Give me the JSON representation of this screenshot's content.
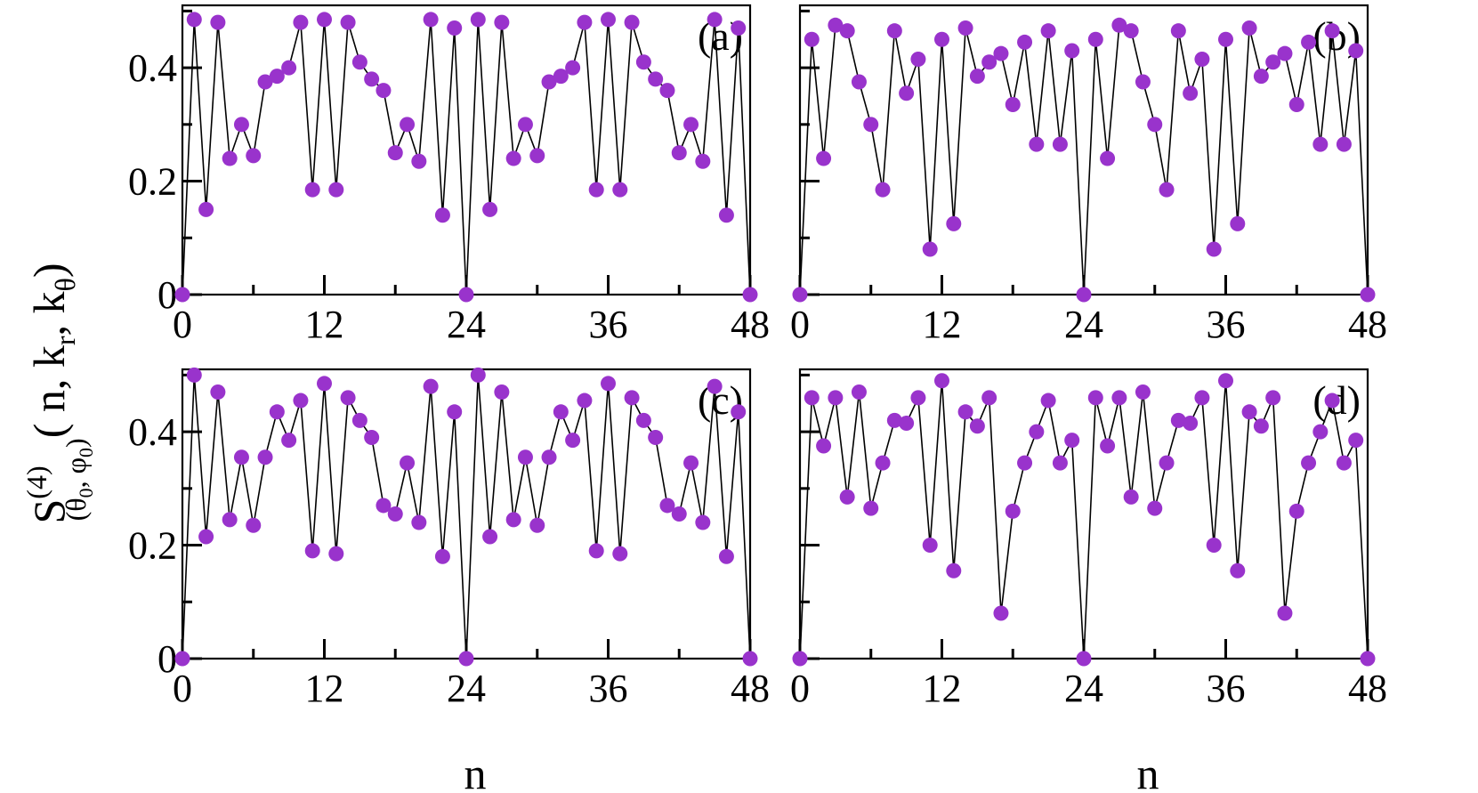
{
  "chart_data": [
    {
      "panel": "(a)",
      "type": "line",
      "xlim": [
        0,
        48
      ],
      "ylim": [
        0,
        0.51
      ],
      "xticks": [
        "0",
        "12",
        "24",
        "36",
        "48"
      ],
      "yticks": [
        "0",
        "0.2",
        "0.4"
      ],
      "x": [
        0,
        1,
        2,
        3,
        4,
        5,
        6,
        7,
        8,
        9,
        10,
        11,
        12,
        13,
        14,
        15,
        16,
        17,
        18,
        19,
        20,
        21,
        22,
        23,
        24,
        25,
        26,
        27,
        28,
        29,
        30,
        31,
        32,
        33,
        34,
        35,
        36,
        37,
        38,
        39,
        40,
        41,
        42,
        43,
        44,
        45,
        46,
        47,
        48
      ],
      "series": [
        {
          "values": [
            0,
            0.485,
            0.15,
            0.48,
            0.24,
            0.3,
            0.245,
            0.375,
            0.385,
            0.4,
            0.48,
            0.185,
            0.485,
            0.185,
            0.48,
            0.41,
            0.38,
            0.36,
            0.25,
            0.3,
            0.235,
            0.485,
            0.14,
            0.47,
            0,
            0.485,
            0.15,
            0.48,
            0.24,
            0.3,
            0.245,
            0.375,
            0.385,
            0.4,
            0.48,
            0.185,
            0.485,
            0.185,
            0.48,
            0.41,
            0.38,
            0.36,
            0.25,
            0.3,
            0.235,
            0.485,
            0.14,
            0.47,
            0
          ]
        }
      ]
    },
    {
      "panel": "(b)",
      "type": "line",
      "xlim": [
        0,
        48
      ],
      "ylim": [
        0,
        0.51
      ],
      "xticks": [
        "0",
        "12",
        "24",
        "36",
        "48"
      ],
      "yticks": [],
      "x": [
        0,
        1,
        2,
        3,
        4,
        5,
        6,
        7,
        8,
        9,
        10,
        11,
        12,
        13,
        14,
        15,
        16,
        17,
        18,
        19,
        20,
        21,
        22,
        23,
        24,
        25,
        26,
        27,
        28,
        29,
        30,
        31,
        32,
        33,
        34,
        35,
        36,
        37,
        38,
        39,
        40,
        41,
        42,
        43,
        44,
        45,
        46,
        47,
        48
      ],
      "series": [
        {
          "values": [
            0,
            0.45,
            0.24,
            0.475,
            0.465,
            0.375,
            0.3,
            0.185,
            0.465,
            0.355,
            0.415,
            0.08,
            0.45,
            0.125,
            0.47,
            0.385,
            0.41,
            0.425,
            0.335,
            0.445,
            0.265,
            0.465,
            0.265,
            0.43,
            0,
            0.45,
            0.24,
            0.475,
            0.465,
            0.375,
            0.3,
            0.185,
            0.465,
            0.355,
            0.415,
            0.08,
            0.45,
            0.125,
            0.47,
            0.385,
            0.41,
            0.425,
            0.335,
            0.445,
            0.265,
            0.465,
            0.265,
            0.43,
            0
          ]
        }
      ]
    },
    {
      "panel": "(c)",
      "type": "line",
      "xlim": [
        0,
        48
      ],
      "ylim": [
        0,
        0.51
      ],
      "xticks": [
        "0",
        "12",
        "24",
        "36",
        "48"
      ],
      "yticks": [
        "0",
        "0.2",
        "0.4"
      ],
      "x": [
        0,
        1,
        2,
        3,
        4,
        5,
        6,
        7,
        8,
        9,
        10,
        11,
        12,
        13,
        14,
        15,
        16,
        17,
        18,
        19,
        20,
        21,
        22,
        23,
        24,
        25,
        26,
        27,
        28,
        29,
        30,
        31,
        32,
        33,
        34,
        35,
        36,
        37,
        38,
        39,
        40,
        41,
        42,
        43,
        44,
        45,
        46,
        47,
        48
      ],
      "series": [
        {
          "values": [
            0,
            0.5,
            0.215,
            0.47,
            0.245,
            0.355,
            0.235,
            0.355,
            0.435,
            0.385,
            0.455,
            0.19,
            0.485,
            0.185,
            0.46,
            0.42,
            0.39,
            0.27,
            0.255,
            0.345,
            0.24,
            0.48,
            0.18,
            0.435,
            0,
            0.5,
            0.215,
            0.47,
            0.245,
            0.355,
            0.235,
            0.355,
            0.435,
            0.385,
            0.455,
            0.19,
            0.485,
            0.185,
            0.46,
            0.42,
            0.39,
            0.27,
            0.255,
            0.345,
            0.24,
            0.48,
            0.18,
            0.435,
            0
          ]
        }
      ]
    },
    {
      "panel": "(d)",
      "type": "line",
      "xlim": [
        0,
        48
      ],
      "ylim": [
        0,
        0.51
      ],
      "xticks": [
        "0",
        "12",
        "24",
        "36",
        "48"
      ],
      "yticks": [],
      "x": [
        0,
        1,
        2,
        3,
        4,
        5,
        6,
        7,
        8,
        9,
        10,
        11,
        12,
        13,
        14,
        15,
        16,
        17,
        18,
        19,
        20,
        21,
        22,
        23,
        24,
        25,
        26,
        27,
        28,
        29,
        30,
        31,
        32,
        33,
        34,
        35,
        36,
        37,
        38,
        39,
        40,
        41,
        42,
        43,
        44,
        45,
        46,
        47,
        48
      ],
      "series": [
        {
          "values": [
            0,
            0.46,
            0.375,
            0.46,
            0.285,
            0.47,
            0.265,
            0.345,
            0.42,
            0.415,
            0.46,
            0.2,
            0.49,
            0.155,
            0.435,
            0.41,
            0.46,
            0.08,
            0.26,
            0.345,
            0.4,
            0.455,
            0.345,
            0.385,
            0,
            0.46,
            0.375,
            0.46,
            0.285,
            0.47,
            0.265,
            0.345,
            0.42,
            0.415,
            0.46,
            0.2,
            0.49,
            0.155,
            0.435,
            0.41,
            0.46,
            0.08,
            0.26,
            0.345,
            0.4,
            0.455,
            0.345,
            0.385,
            0
          ]
        }
      ]
    }
  ],
  "axis_labels": {
    "x": "n",
    "y_main": "S",
    "y_sup": "(4)",
    "y_sub_open": "(θ",
    "y_sub_0a": "0",
    "y_sub_mid": ", φ",
    "y_sub_0b": "0",
    "y_sub_close": ")",
    "y_args_open": "( n, k",
    "y_args_r": "r",
    "y_args_mid": ", k",
    "y_args_theta": "θ",
    "y_args_close": ")"
  },
  "colors": {
    "marker": "#9933cc",
    "line": "#000000"
  }
}
